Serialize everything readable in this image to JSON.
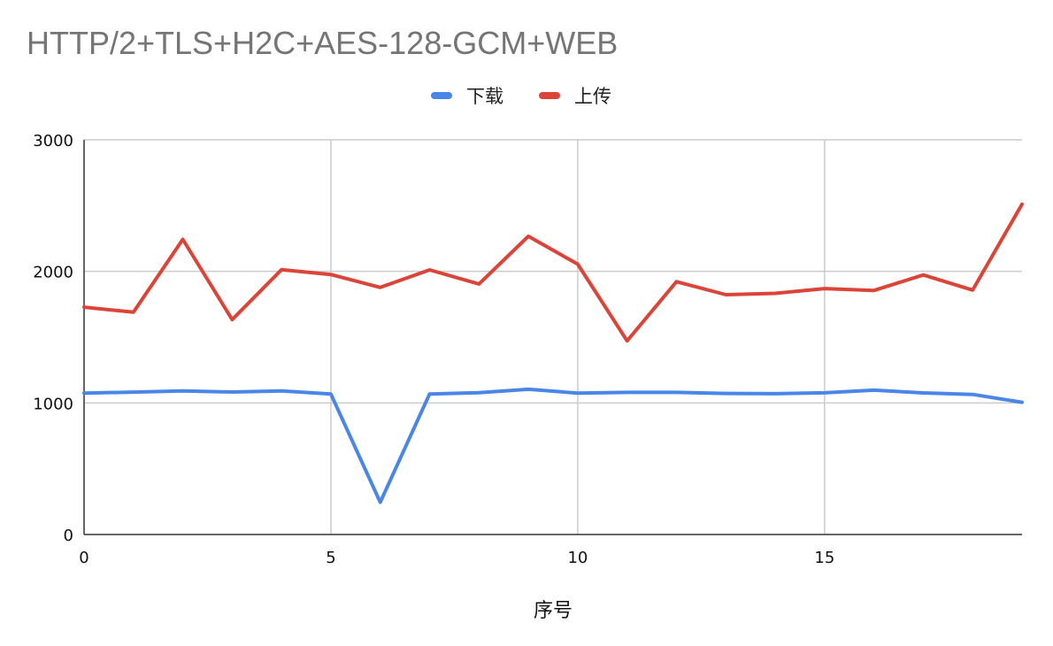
{
  "chart_data": {
    "type": "line",
    "title": "HTTP/2+TLS+H2C+AES-128-GCM+WEB",
    "xlabel": "序号",
    "ylabel": "",
    "xlim": [
      0,
      19
    ],
    "ylim": [
      0,
      3000
    ],
    "xticks": [
      0,
      5,
      10,
      15
    ],
    "yticks": [
      0,
      1000,
      2000,
      3000
    ],
    "grid": true,
    "legend_position": "top-center",
    "x": [
      0,
      1,
      2,
      3,
      4,
      5,
      6,
      7,
      8,
      9,
      10,
      11,
      12,
      13,
      14,
      15,
      16,
      17,
      18,
      19
    ],
    "series": [
      {
        "name": "下载",
        "color": "#4a86e8",
        "values": [
          1075,
          1082,
          1092,
          1083,
          1092,
          1068,
          245,
          1068,
          1078,
          1104,
          1075,
          1080,
          1080,
          1072,
          1070,
          1077,
          1097,
          1076,
          1065,
          1005
        ]
      },
      {
        "name": "上传",
        "color": "#db4437",
        "values": [
          1728,
          1690,
          2243,
          1633,
          2013,
          1976,
          1878,
          2011,
          1904,
          2267,
          2055,
          1472,
          1922,
          1823,
          1833,
          1869,
          1855,
          1973,
          1858,
          2510
        ]
      }
    ]
  }
}
